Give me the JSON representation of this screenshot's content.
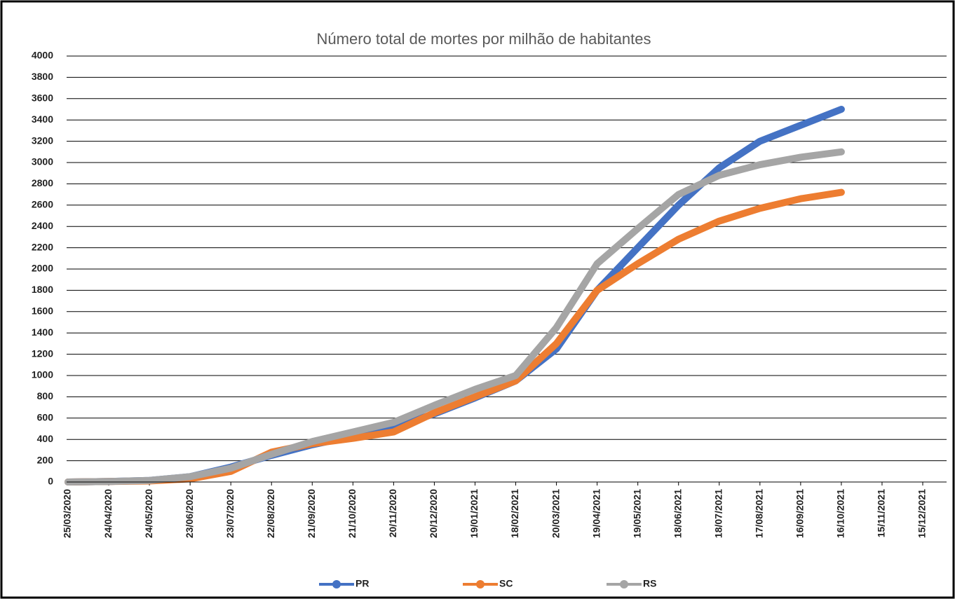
{
  "chart_data": {
    "type": "line",
    "title": "Número total de mortes por milhão de habitantes",
    "categories": [
      "25/03/2020",
      "24/04/2020",
      "24/05/2020",
      "23/06/2020",
      "23/07/2020",
      "22/08/2020",
      "21/09/2020",
      "21/10/2020",
      "20/11/2020",
      "20/12/2020",
      "19/01/2021",
      "18/02/2021",
      "20/03/2021",
      "19/04/2021",
      "19/05/2021",
      "18/06/2021",
      "18/07/2021",
      "17/08/2021",
      "16/09/2021",
      "16/10/2021",
      "15/11/2021",
      "15/12/2021"
    ],
    "series": [
      {
        "name": "PR",
        "color": "#4472c4",
        "values": [
          0,
          5,
          15,
          50,
          140,
          250,
          350,
          430,
          520,
          640,
          790,
          950,
          1250,
          1800,
          2200,
          2600,
          2950,
          3200,
          3350,
          3500,
          null,
          null
        ]
      },
      {
        "name": "SC",
        "color": "#ed7d31",
        "values": [
          0,
          5,
          10,
          30,
          100,
          280,
          360,
          410,
          470,
          650,
          800,
          950,
          1300,
          1800,
          2050,
          2280,
          2450,
          2570,
          2660,
          2720,
          null,
          null
        ]
      },
      {
        "name": "RS",
        "color": "#a5a5a5",
        "values": [
          0,
          5,
          15,
          50,
          130,
          260,
          380,
          470,
          560,
          720,
          870,
          1000,
          1450,
          2050,
          2380,
          2700,
          2880,
          2980,
          3050,
          3100,
          null,
          null
        ]
      }
    ],
    "ylim": [
      0,
      4000
    ],
    "yticks": [
      0,
      200,
      400,
      600,
      800,
      1000,
      1200,
      1400,
      1600,
      1800,
      2000,
      2200,
      2400,
      2600,
      2800,
      3000,
      3200,
      3400,
      3600,
      3800,
      4000
    ],
    "grid": true,
    "legend": "bottom"
  }
}
